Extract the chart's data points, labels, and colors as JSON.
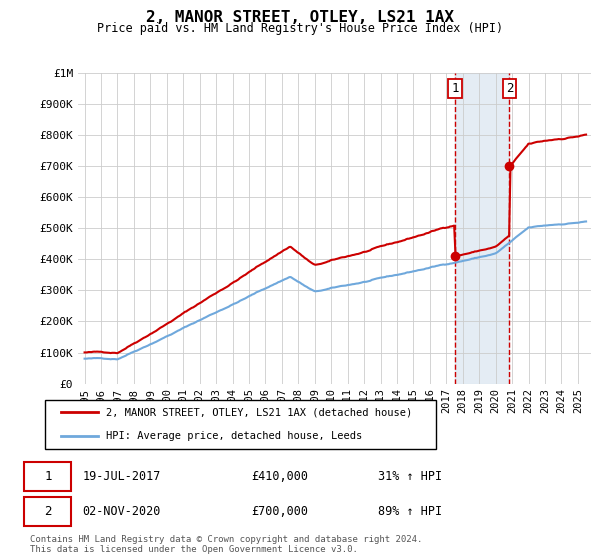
{
  "title": "2, MANOR STREET, OTLEY, LS21 1AX",
  "subtitle": "Price paid vs. HM Land Registry's House Price Index (HPI)",
  "ylim": [
    0,
    1000000
  ],
  "yticks": [
    0,
    100000,
    200000,
    300000,
    400000,
    500000,
    600000,
    700000,
    800000,
    900000,
    1000000
  ],
  "ytick_labels": [
    "£0",
    "£100K",
    "£200K",
    "£300K",
    "£400K",
    "£500K",
    "£600K",
    "£700K",
    "£800K",
    "£900K",
    "£1M"
  ],
  "hpi_color": "#6fa8dc",
  "price_color": "#cc0000",
  "marker_color": "#cc0000",
  "transaction1": {
    "date_num": 2017.55,
    "price": 410000,
    "label": "1",
    "date_str": "19-JUL-2017",
    "pct": "31%"
  },
  "transaction2": {
    "date_num": 2020.84,
    "price": 700000,
    "label": "2",
    "date_str": "02-NOV-2020",
    "pct": "89%"
  },
  "legend_line1": "2, MANOR STREET, OTLEY, LS21 1AX (detached house)",
  "legend_line2": "HPI: Average price, detached house, Leeds",
  "footer": "Contains HM Land Registry data © Crown copyright and database right 2024.\nThis data is licensed under the Open Government Licence v3.0.",
  "bg_highlight_color": "#dce6f1",
  "vline_color": "#cc0000"
}
